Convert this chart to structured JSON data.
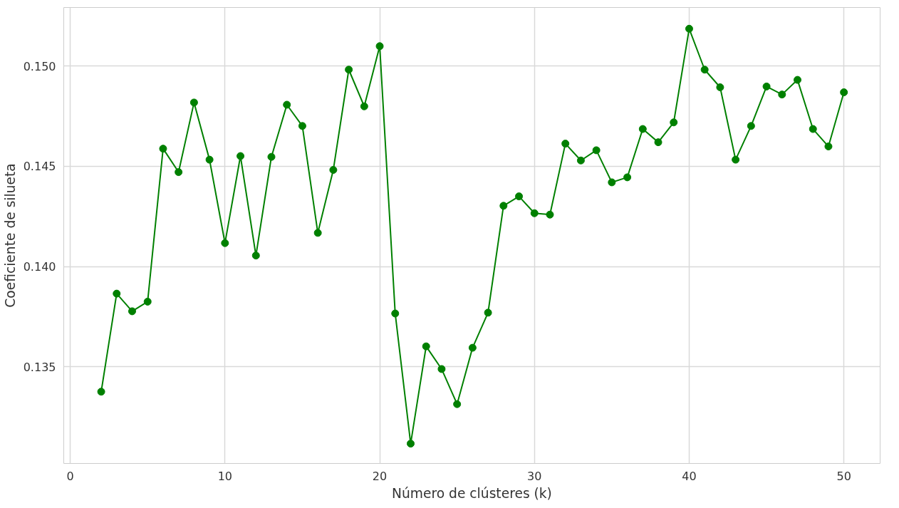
{
  "chart_data": {
    "type": "line",
    "xlabel": "Número de clústeres (k)",
    "ylabel": "Coeficiente de silueta",
    "x": [
      2,
      3,
      4,
      5,
      6,
      7,
      8,
      9,
      10,
      11,
      12,
      13,
      14,
      15,
      16,
      17,
      18,
      19,
      20,
      21,
      22,
      23,
      24,
      25,
      26,
      27,
      28,
      29,
      30,
      31,
      32,
      33,
      34,
      35,
      36,
      37,
      38,
      39,
      40,
      41,
      42,
      43,
      44,
      45,
      46,
      47,
      48,
      49,
      50
    ],
    "series": [
      {
        "color": "#008000",
        "values": [
          0.13376,
          0.13865,
          0.13777,
          0.13825,
          0.14588,
          0.14471,
          0.14818,
          0.14533,
          0.14117,
          0.14551,
          0.14055,
          0.14547,
          0.14807,
          0.14701,
          0.14168,
          0.14482,
          0.14982,
          0.14799,
          0.15099,
          0.13766,
          0.13117,
          0.13602,
          0.13489,
          0.13314,
          0.13595,
          0.1377,
          0.14303,
          0.1435,
          0.14266,
          0.14259,
          0.14613,
          0.14529,
          0.1458,
          0.1442,
          0.14445,
          0.14686,
          0.1462,
          0.14719,
          0.15186,
          0.14982,
          0.14894,
          0.14533,
          0.14701,
          0.14898,
          0.14858,
          0.14931,
          0.14686,
          0.14599,
          0.14869
        ]
      }
    ],
    "xlim": [
      -0.42,
      52.34
    ],
    "ylim": [
      0.13018,
      0.15292
    ],
    "xticks": [
      0,
      10,
      20,
      30,
      40,
      50
    ],
    "yticks": [
      {
        "value": 0.135,
        "label": "0.135"
      },
      {
        "value": 0.14,
        "label": "0.140"
      },
      {
        "value": 0.145,
        "label": "0.145"
      },
      {
        "value": 0.15,
        "label": "0.150"
      }
    ],
    "grid": true,
    "marker": "circle",
    "line_style": "solid"
  }
}
